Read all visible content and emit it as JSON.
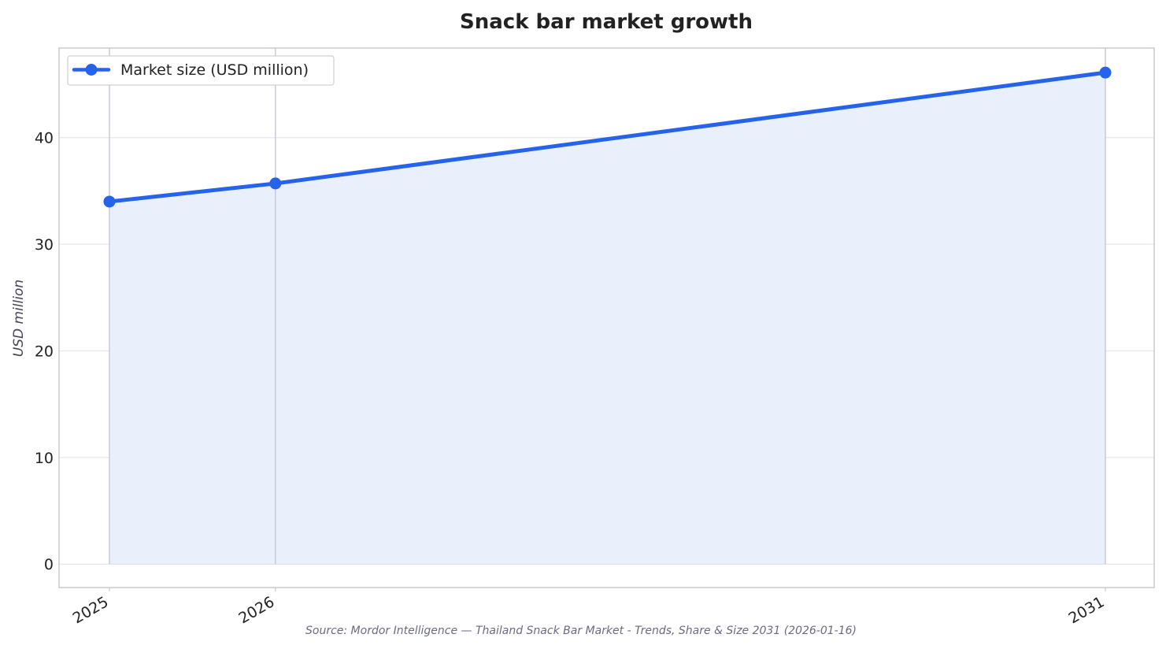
{
  "chart_data": {
    "type": "area",
    "title": "Snack bar market growth",
    "xlabel": "",
    "ylabel": "USD million",
    "categories": [
      "2025",
      "2026",
      "2031"
    ],
    "x": [
      2025,
      2026,
      2031
    ],
    "series": [
      {
        "name": "Market size (USD million)",
        "values": [
          34.0,
          35.7,
          46.1
        ]
      }
    ],
    "ylim": [
      -2.2,
      48.4
    ],
    "yticks": [
      0,
      10,
      20,
      30,
      40
    ],
    "grid": true,
    "legend_position": "top-left",
    "colors": {
      "line": "#2563eb",
      "fill": "#eaf0fb",
      "frame": "#c8c8d0",
      "grid": "#e6e6ee",
      "vline": "#c4c8d4"
    },
    "source": "Source: Mordor Intelligence — Thailand Snack Bar Market - Trends, Share & Size 2031 (2026-01-16)"
  }
}
